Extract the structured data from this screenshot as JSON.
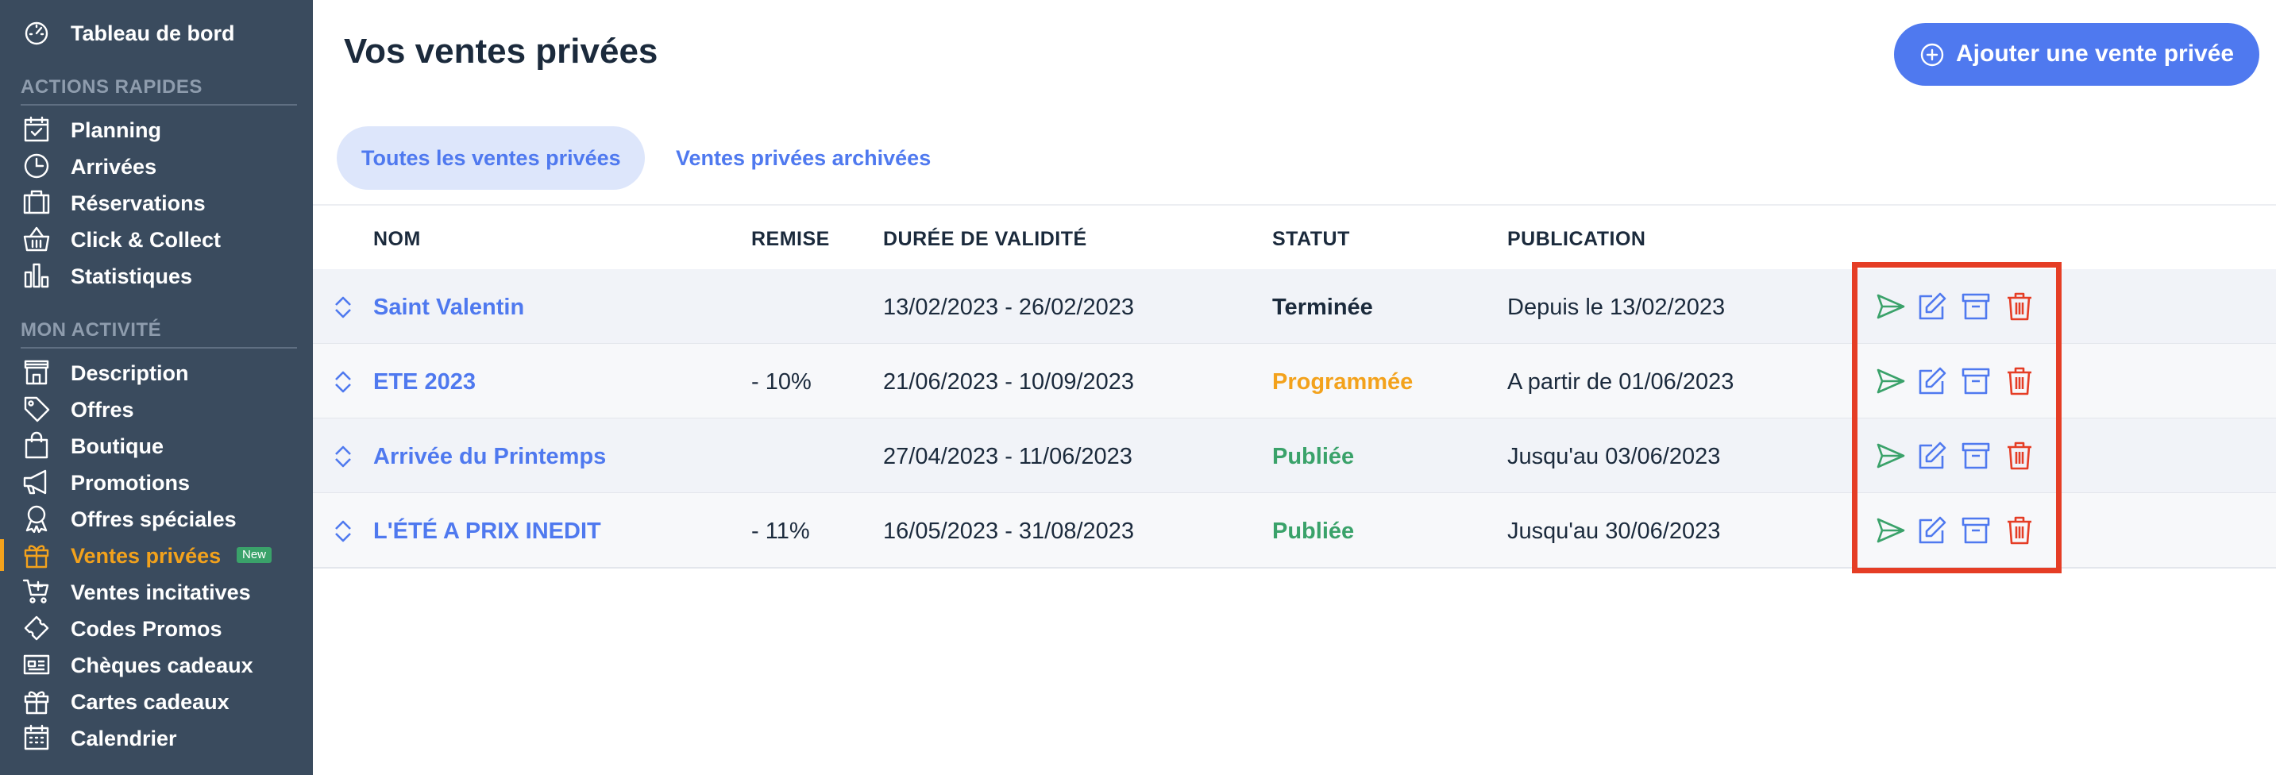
{
  "sidebar": {
    "dashboard_label": "Tableau de bord",
    "section_quick": "ACTIONS RAPIDES",
    "section_activity": "MON ACTIVITÉ",
    "quick_items": [
      {
        "label": "Planning",
        "icon": "calendar-check-icon"
      },
      {
        "label": "Arrivées",
        "icon": "clock-icon"
      },
      {
        "label": "Réservations",
        "icon": "briefcase-icon"
      },
      {
        "label": "Click & Collect",
        "icon": "basket-icon"
      },
      {
        "label": "Statistiques",
        "icon": "bar-chart-icon"
      }
    ],
    "activity_items": [
      {
        "label": "Description",
        "icon": "store-icon"
      },
      {
        "label": "Offres",
        "icon": "tag-icon"
      },
      {
        "label": "Boutique",
        "icon": "shopping-bag-icon"
      },
      {
        "label": "Promotions",
        "icon": "megaphone-icon"
      },
      {
        "label": "Offres spéciales",
        "icon": "award-icon"
      },
      {
        "label": "Ventes privées",
        "icon": "gift-icon",
        "badge": "New",
        "active": true
      },
      {
        "label": "Ventes incitatives",
        "icon": "cart-plus-icon"
      },
      {
        "label": "Codes Promos",
        "icon": "ticket-icon"
      },
      {
        "label": "Chèques cadeaux",
        "icon": "voucher-icon"
      },
      {
        "label": "Cartes cadeaux",
        "icon": "gift-card-icon"
      },
      {
        "label": "Calendrier",
        "icon": "calendar-icon"
      }
    ]
  },
  "header": {
    "title": "Vos ventes privées",
    "add_button": "Ajouter une vente privée"
  },
  "tabs": [
    {
      "label": "Toutes les ventes privées",
      "active": true
    },
    {
      "label": "Ventes privées archivées",
      "active": false
    }
  ],
  "table": {
    "columns": [
      "NOM",
      "REMISE",
      "DURÉE DE VALIDITÉ",
      "STATUT",
      "PUBLICATION"
    ],
    "rows": [
      {
        "nom": "Saint Valentin",
        "remise": "",
        "duree": "13/02/2023 - 26/02/2023",
        "statut": "Terminée",
        "publication": "Depuis le 13/02/2023"
      },
      {
        "nom": "ETE 2023",
        "remise": "- 10%",
        "duree": "21/06/2023 - 10/09/2023",
        "statut": "Programmée",
        "publication": "A partir de 01/06/2023"
      },
      {
        "nom": "Arrivée du Printemps",
        "remise": "",
        "duree": "27/04/2023 - 11/06/2023",
        "statut": "Publiée",
        "publication": "Jusqu'au 03/06/2023"
      },
      {
        "nom": "L'ÉTÉ A PRIX INEDIT",
        "remise": "- 11%",
        "duree": "16/05/2023 - 31/08/2023",
        "statut": "Publiée",
        "publication": "Jusqu'au 30/06/2023"
      }
    ]
  },
  "colors": {
    "sidebar_bg": "#3a4b5e",
    "accent_blue": "#4f79ef",
    "active_orange": "#f3a21c",
    "status_terminee": "#1b2a3c",
    "status_programmee": "#f3a21c",
    "status_publiee": "#3aa26a",
    "action_send": "#3aa26a",
    "action_edit": "#4f79ef",
    "action_archive": "#4f79ef",
    "action_delete": "#e53d25",
    "highlight_border": "#e53d25"
  }
}
